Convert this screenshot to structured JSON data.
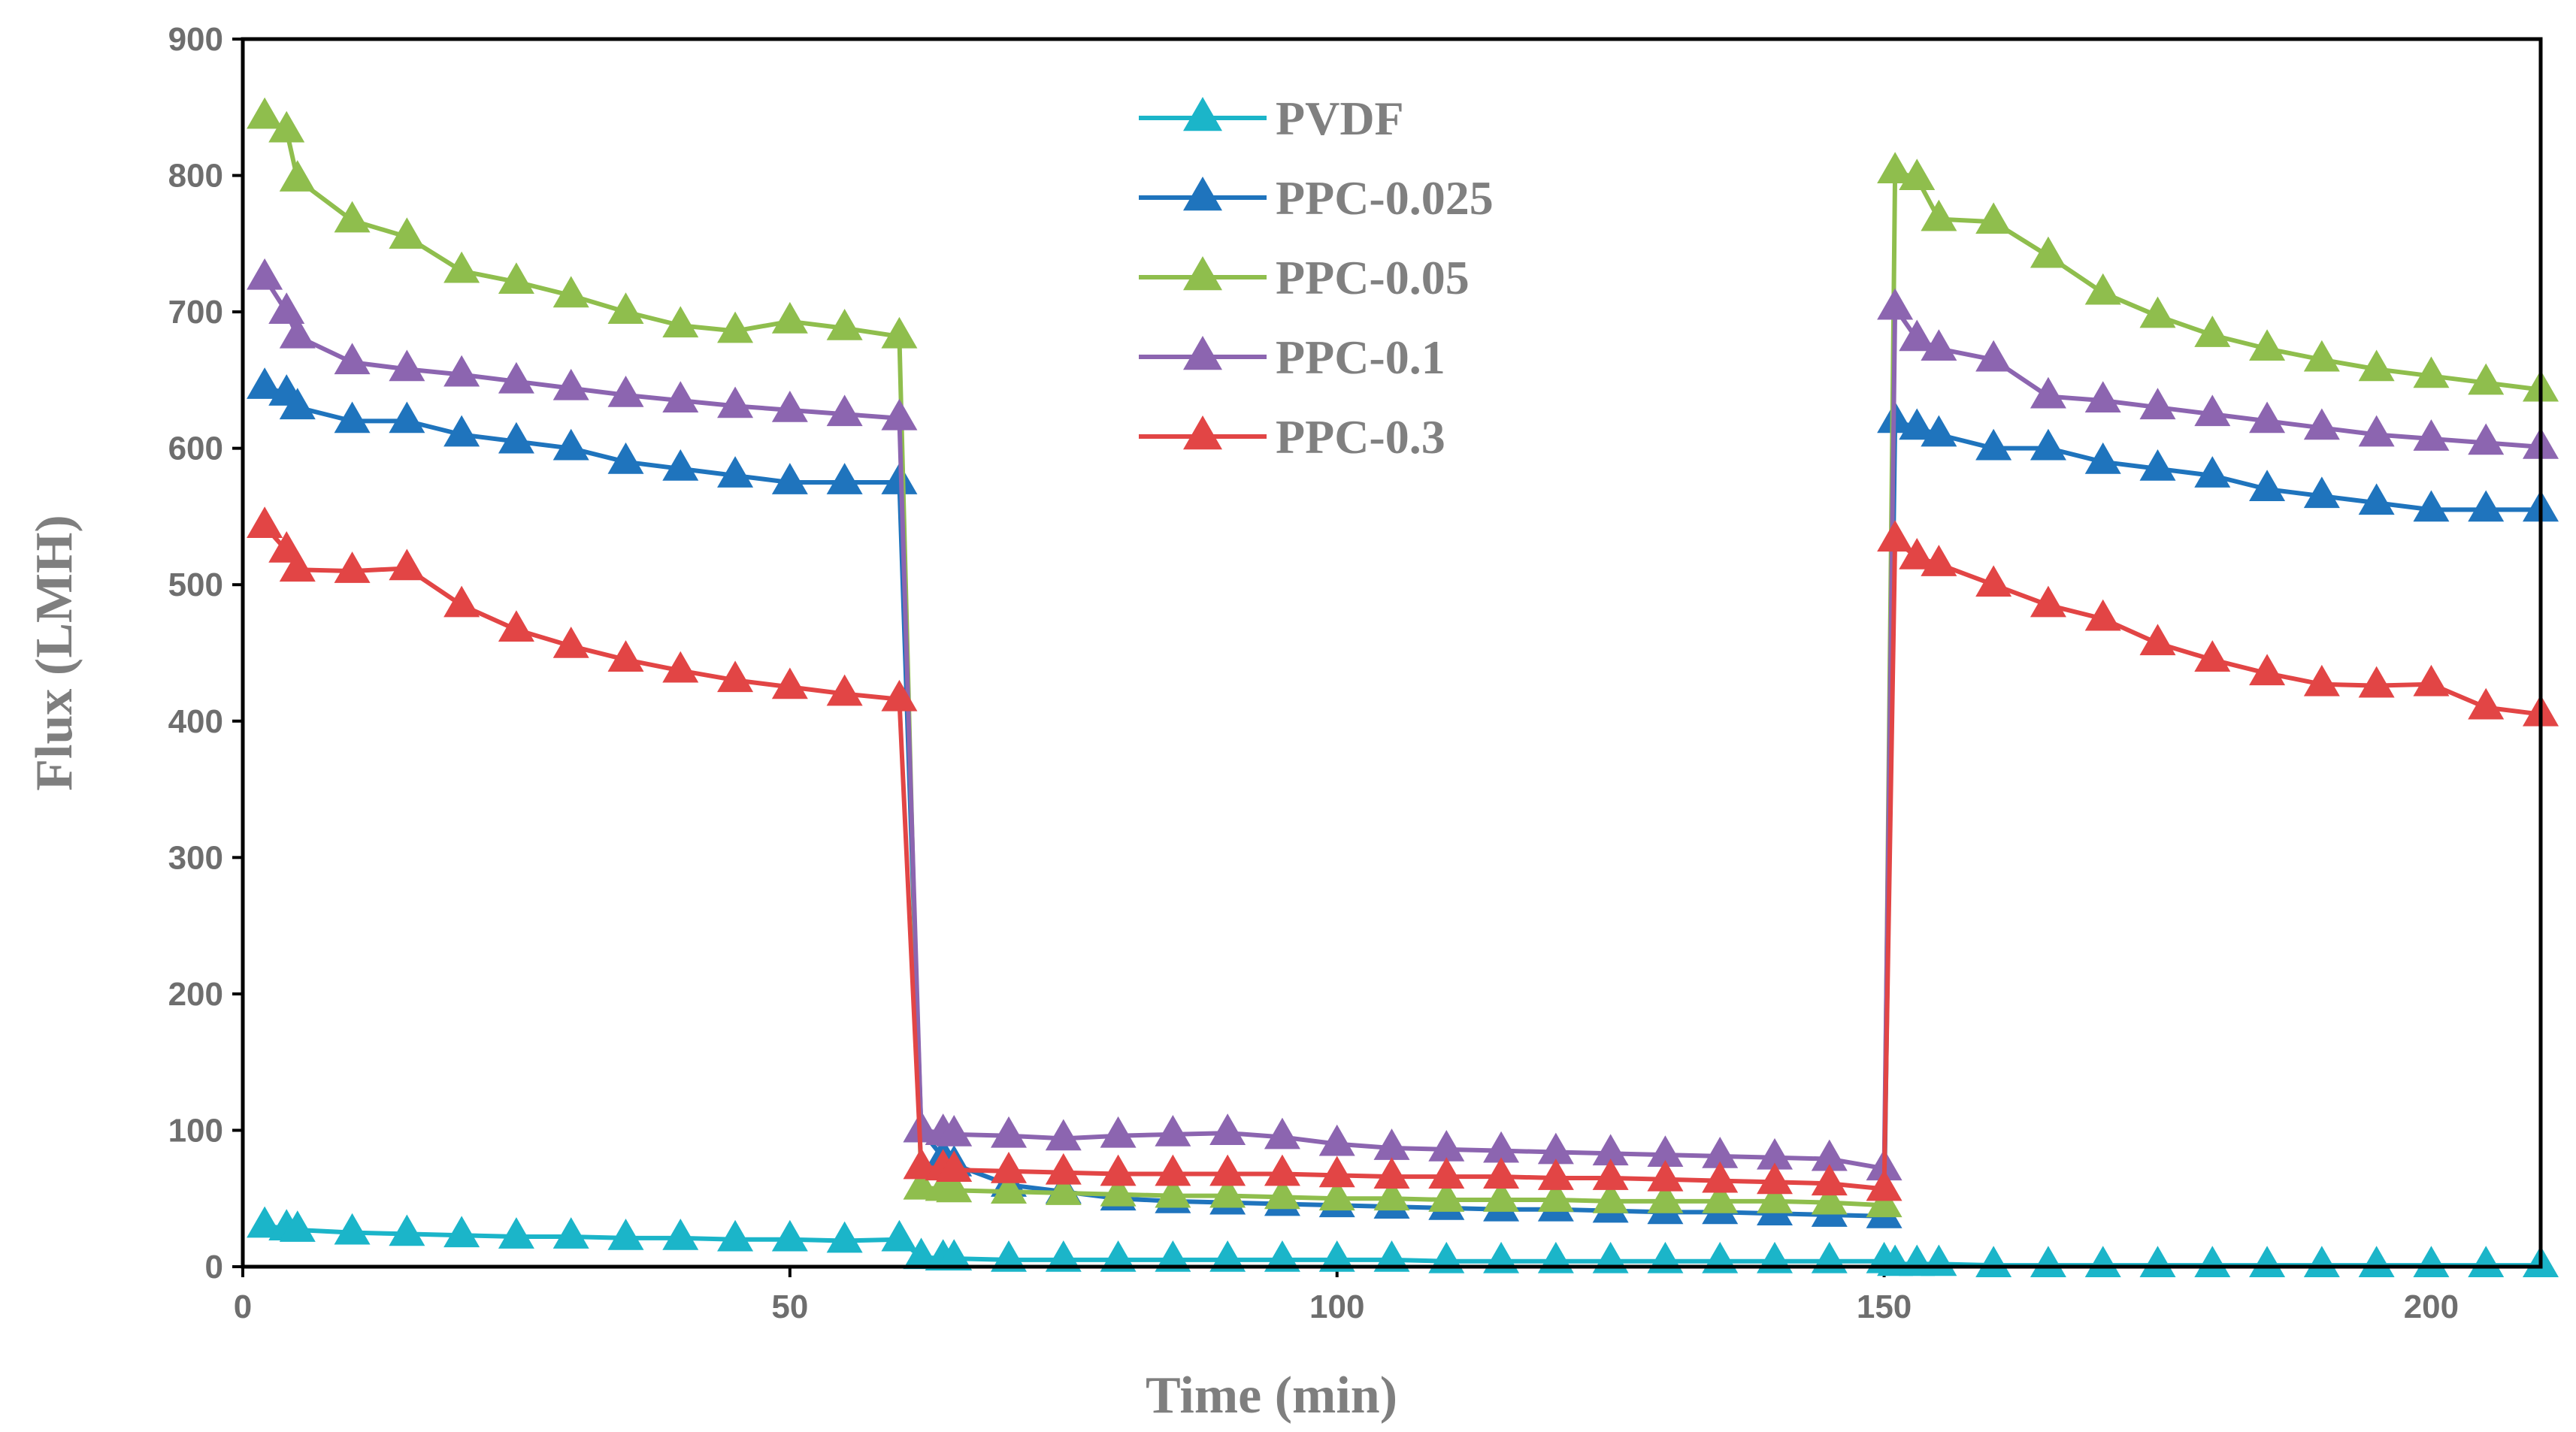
{
  "chart_data": {
    "type": "line",
    "xlabel": "Time (min)",
    "ylabel": "Flux (LMH)",
    "xlim": [
      0,
      210
    ],
    "ylim": [
      0,
      900
    ],
    "xticks": [
      0,
      50,
      100,
      150,
      200
    ],
    "yticks": [
      0,
      100,
      200,
      300,
      400,
      500,
      600,
      700,
      800,
      900
    ],
    "legend_position": "top-center",
    "marker": "triangle",
    "series": [
      {
        "name": "PVDF",
        "color": "#1bb5c9",
        "x": [
          2,
          4,
          5,
          10,
          15,
          20,
          25,
          30,
          35,
          40,
          45,
          50,
          55,
          60,
          62,
          64,
          65,
          70,
          75,
          80,
          85,
          90,
          95,
          100,
          105,
          110,
          115,
          120,
          125,
          130,
          135,
          140,
          145,
          150,
          151,
          153,
          155,
          160,
          165,
          170,
          175,
          180,
          185,
          190,
          195,
          200,
          205,
          210
        ],
        "values": [
          30,
          28,
          27,
          25,
          24,
          23,
          22,
          22,
          21,
          21,
          20,
          20,
          19,
          20,
          7,
          6,
          6,
          5,
          5,
          5,
          5,
          5,
          5,
          5,
          5,
          4,
          4,
          4,
          4,
          4,
          4,
          4,
          4,
          4,
          2,
          2,
          2,
          1,
          1,
          1,
          1,
          1,
          1,
          1,
          1,
          1,
          1,
          1
        ]
      },
      {
        "name": "PPC-0.025",
        "color": "#1f74bd",
        "x": [
          2,
          4,
          5,
          10,
          15,
          20,
          25,
          30,
          35,
          40,
          45,
          50,
          55,
          60,
          62,
          64,
          65,
          70,
          75,
          80,
          85,
          90,
          95,
          100,
          105,
          110,
          115,
          120,
          125,
          130,
          135,
          140,
          145,
          150,
          151,
          153,
          155,
          160,
          165,
          170,
          175,
          180,
          185,
          190,
          195,
          200,
          205,
          210
        ],
        "values": [
          645,
          640,
          630,
          620,
          620,
          610,
          605,
          600,
          590,
          585,
          580,
          575,
          575,
          575,
          100,
          80,
          75,
          60,
          55,
          50,
          48,
          47,
          46,
          45,
          44,
          43,
          42,
          42,
          41,
          40,
          40,
          39,
          38,
          37,
          620,
          615,
          610,
          600,
          600,
          590,
          585,
          580,
          570,
          565,
          560,
          555,
          555,
          555
        ]
      },
      {
        "name": "PPC-0.05",
        "color": "#8fbe4d",
        "x": [
          2,
          4,
          5,
          10,
          15,
          20,
          25,
          30,
          35,
          40,
          45,
          50,
          55,
          60,
          62,
          64,
          65,
          70,
          75,
          80,
          85,
          90,
          95,
          100,
          105,
          110,
          115,
          120,
          125,
          130,
          135,
          140,
          145,
          150,
          151,
          153,
          155,
          160,
          165,
          170,
          175,
          180,
          185,
          190,
          195,
          200,
          205,
          210
        ],
        "values": [
          843,
          833,
          797,
          767,
          755,
          730,
          722,
          712,
          700,
          690,
          686,
          693,
          688,
          682,
          58,
          57,
          56,
          55,
          54,
          53,
          52,
          52,
          51,
          50,
          50,
          49,
          49,
          49,
          48,
          48,
          48,
          48,
          47,
          45,
          803,
          798,
          768,
          766,
          741,
          714,
          697,
          683,
          673,
          665,
          658,
          653,
          648,
          643
        ]
      },
      {
        "name": "PPC-0.1",
        "color": "#8c65b0",
        "x": [
          2,
          4,
          5,
          10,
          15,
          20,
          25,
          30,
          35,
          40,
          45,
          50,
          55,
          60,
          62,
          64,
          65,
          70,
          75,
          80,
          85,
          90,
          95,
          100,
          105,
          110,
          115,
          120,
          125,
          130,
          135,
          140,
          145,
          150,
          151,
          153,
          155,
          160,
          165,
          170,
          175,
          180,
          185,
          190,
          195,
          200,
          205,
          210
        ],
        "values": [
          725,
          700,
          682,
          663,
          658,
          654,
          649,
          644,
          639,
          635,
          631,
          628,
          625,
          622,
          100,
          98,
          97,
          96,
          94,
          96,
          97,
          98,
          95,
          90,
          87,
          86,
          85,
          84,
          83,
          82,
          81,
          80,
          79,
          72,
          703,
          680,
          673,
          665,
          638,
          635,
          630,
          625,
          620,
          615,
          610,
          607,
          604,
          601
        ]
      },
      {
        "name": "PPC-0.3",
        "color": "#e24545",
        "x": [
          2,
          4,
          5,
          10,
          15,
          20,
          25,
          30,
          35,
          40,
          45,
          50,
          55,
          60,
          62,
          64,
          65,
          70,
          75,
          80,
          85,
          90,
          95,
          100,
          105,
          110,
          115,
          120,
          125,
          130,
          135,
          140,
          145,
          150,
          151,
          153,
          155,
          160,
          165,
          170,
          175,
          180,
          185,
          190,
          195,
          200,
          205,
          210
        ],
        "values": [
          543,
          525,
          511,
          510,
          512,
          485,
          467,
          455,
          445,
          437,
          430,
          425,
          420,
          416,
          73,
          72,
          71,
          70,
          69,
          68,
          68,
          68,
          68,
          67,
          66,
          66,
          66,
          65,
          65,
          64,
          63,
          62,
          61,
          57,
          533,
          520,
          515,
          500,
          485,
          475,
          457,
          445,
          435,
          427,
          426,
          427,
          410,
          405
        ]
      }
    ]
  }
}
